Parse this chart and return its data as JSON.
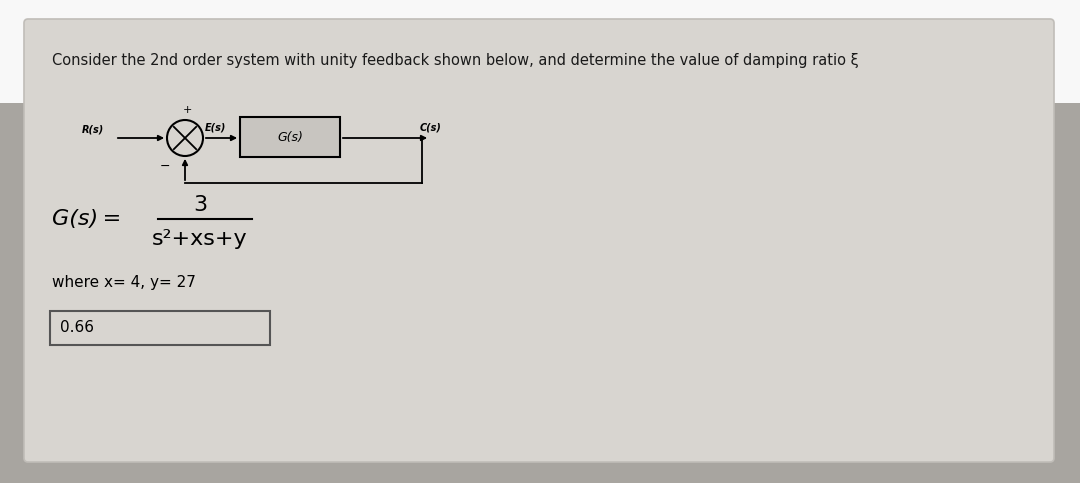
{
  "bg_top_color": "#ffffff",
  "bg_bottom_color": "#a8a8a8",
  "card_color": "#d6d3cd",
  "card_edge_color": "#bbbbbb",
  "title": "Consider the 2nd order system with unity feedback shown below, and determine the value of damping ratio ξ",
  "title_fontsize": 10.5,
  "gs_formula_top": "3",
  "gs_formula_bottom": "s²+xs+y",
  "gs_label": "G(s) =",
  "where_text": "where x= 4, y= 27",
  "answer": "0.66",
  "block_label": "G(s)",
  "Rs_label": "R(s)",
  "Es_label": "E(s)",
  "Cs_label": "C(s)",
  "summing_plus": "+",
  "summing_minus": "−"
}
